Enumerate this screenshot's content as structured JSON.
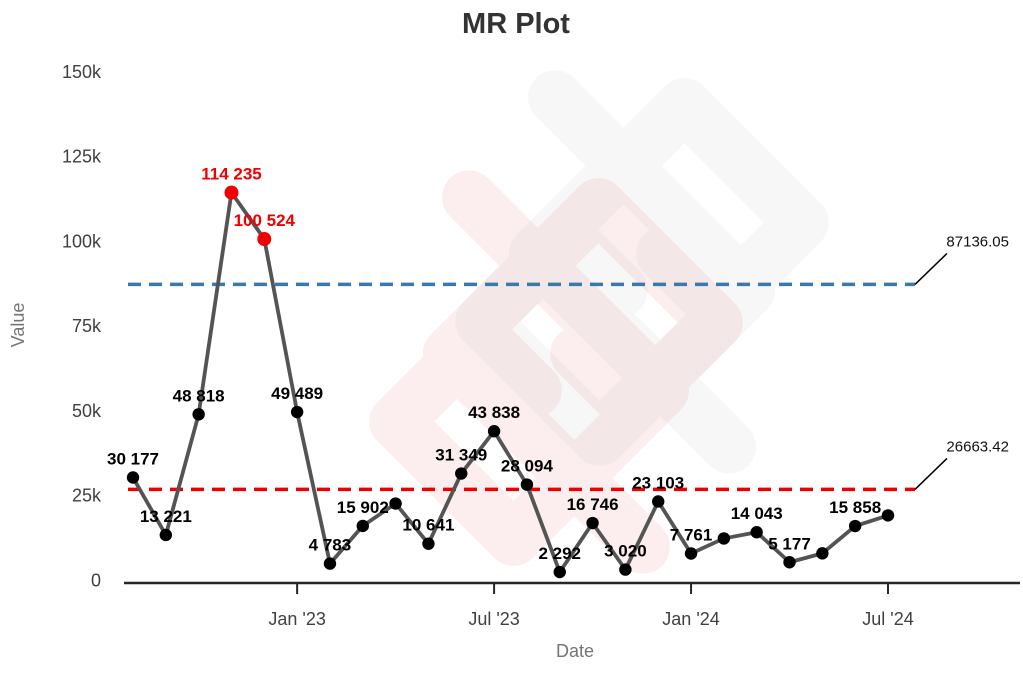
{
  "chart_data": {
    "type": "line",
    "title": "MR Plot",
    "xlabel": "Date",
    "ylabel": "Value",
    "x_tick_labels": [
      "Jan '23",
      "Jul '23",
      "Jan '24",
      "Jul '24"
    ],
    "x_tick_point_index": [
      5,
      11,
      17,
      23
    ],
    "y_tick_labels": [
      "0",
      "25k",
      "50k",
      "75k",
      "100k",
      "125k",
      "150k"
    ],
    "y_tick_values": [
      0,
      25000,
      50000,
      75000,
      100000,
      125000,
      150000
    ],
    "ylim": [
      0,
      158000
    ],
    "grid": false,
    "legend": "none",
    "series_line_color": "#545454",
    "marker_color": "#000000",
    "highlight_color": "#f00000",
    "points": [
      {
        "label": "30 177",
        "value": 30177
      },
      {
        "label": "13 221",
        "value": 13221
      },
      {
        "label": "48 818",
        "value": 48818
      },
      {
        "label": "114 235",
        "value": 114235,
        "highlight": true
      },
      {
        "label": "100 524",
        "value": 100524,
        "highlight": true
      },
      {
        "label": "49 489",
        "value": 49489
      },
      {
        "label": "4 783",
        "value": 4783
      },
      {
        "label": "15 902",
        "value": 15902
      },
      {
        "label": "",
        "value": 22500,
        "estimated": true
      },
      {
        "label": "10 641",
        "value": 10641
      },
      {
        "label": "31 349",
        "value": 31349
      },
      {
        "label": "43 838",
        "value": 43838
      },
      {
        "label": "28 094",
        "value": 28094
      },
      {
        "label": "2 292",
        "value": 2292
      },
      {
        "label": "16 746",
        "value": 16746
      },
      {
        "label": "3 020",
        "value": 3020
      },
      {
        "label": "23 103",
        "value": 23103
      },
      {
        "label": "7 761",
        "value": 7761
      },
      {
        "label": "",
        "value": 12200,
        "estimated": true
      },
      {
        "label": "14 043",
        "value": 14043
      },
      {
        "label": "5 177",
        "value": 5177
      },
      {
        "label": "",
        "value": 7800,
        "estimated": true
      },
      {
        "label": "15 858",
        "value": 15858
      },
      {
        "label": "",
        "value": 19000,
        "estimated": true
      }
    ],
    "control_lines": [
      {
        "label": "87136.05",
        "value": 87136.05,
        "color": "#3b79ac",
        "style": "dashed"
      },
      {
        "label": "26663.42",
        "value": 26663.42,
        "color": "#ee0000",
        "style": "dashed"
      }
    ]
  }
}
